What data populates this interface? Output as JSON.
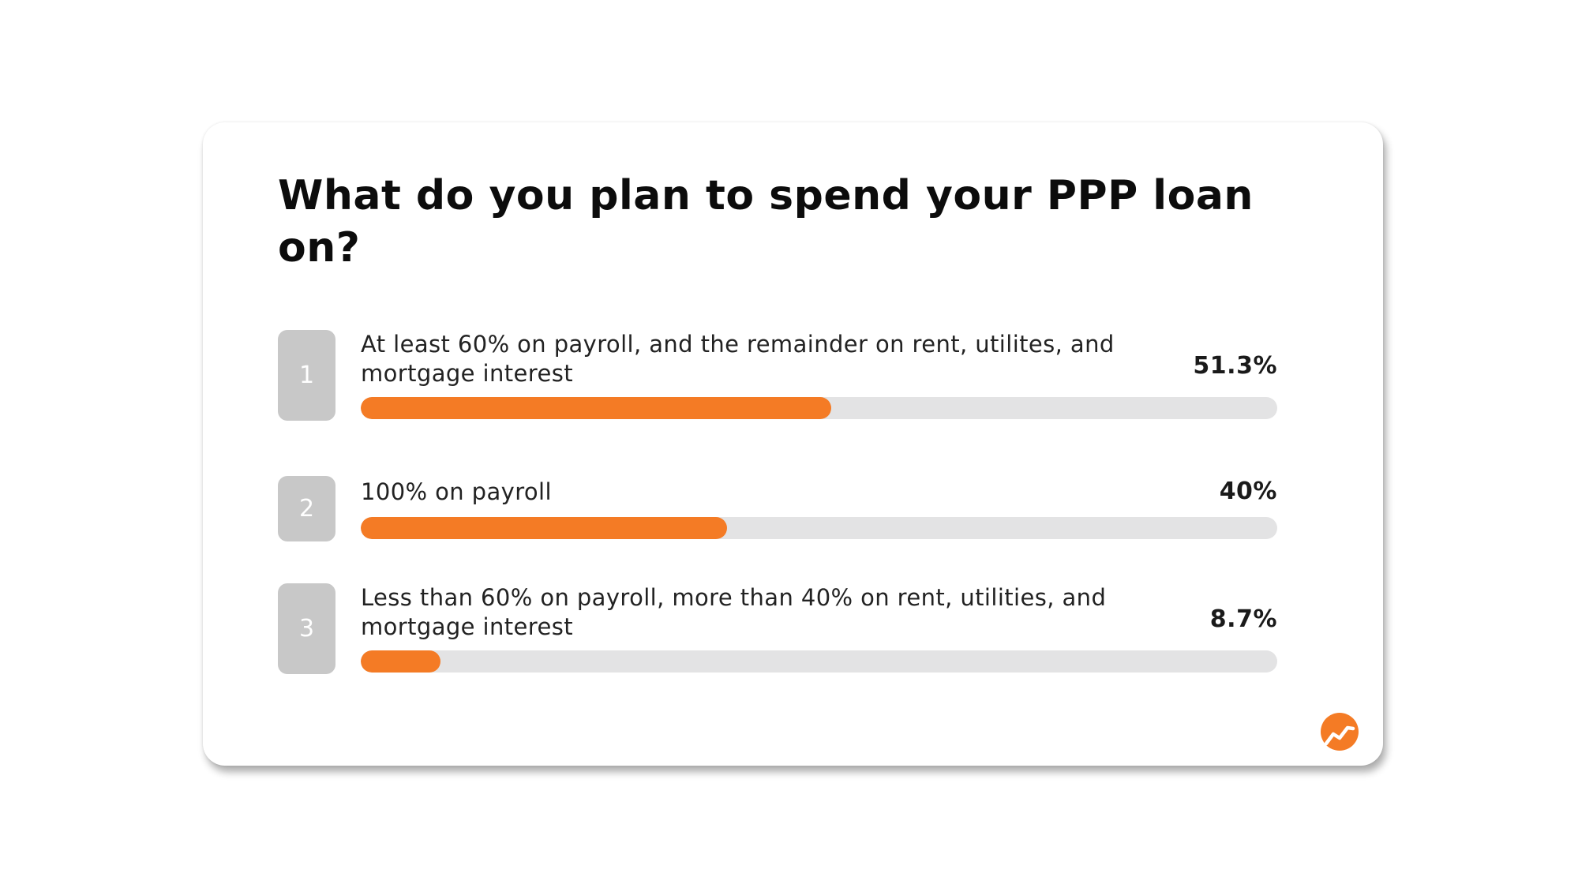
{
  "chart_data": {
    "type": "bar",
    "title": "What do you plan to spend your PPP loan on?",
    "categories": [
      "At least 60% on payroll, and the remainder on rent, utilites, and mortgage interest",
      "100% on payroll",
      "Less than 60% on payroll, more than 40% on rent, utilities, and mortgage interest"
    ],
    "values": [
      51.3,
      40,
      8.7
    ],
    "value_labels": [
      "51.3%",
      "40%",
      "8.7%"
    ],
    "ranks": [
      "1",
      "2",
      "3"
    ],
    "xlim": [
      0,
      100
    ],
    "bar_color": "#f47b25",
    "track_color": "#e3e3e4",
    "badge_color": "#c8c8c8",
    "orientation": "horizontal"
  },
  "logo_icon": "trend-up-icon"
}
